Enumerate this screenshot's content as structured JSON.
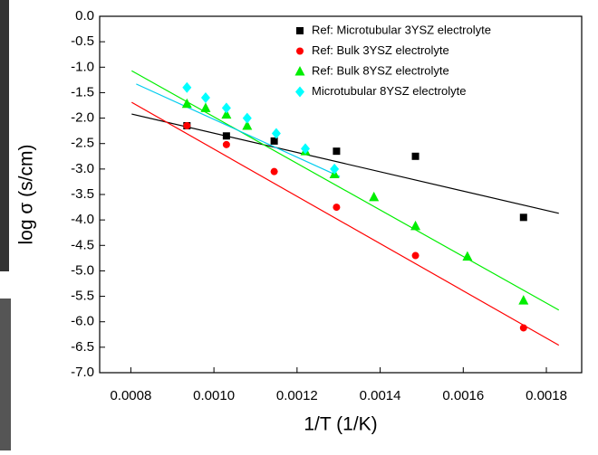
{
  "chart_data": {
    "type": "scatter",
    "x_label": "1/T (1/K)",
    "y_label": "log σ (s/cm)",
    "xlim": [
      0.000725,
      0.001885
    ],
    "ylim": [
      -7,
      0
    ],
    "xticks": [
      0.0008,
      {
        "value": 0.001,
        "label": "0.0010"
      },
      0.0012,
      0.0014,
      0.0016,
      0.0018
    ],
    "yticks": [
      {
        "value": 0,
        "label": "0.0"
      },
      -0.5,
      {
        "value": -1,
        "label": "-1.0"
      },
      -1.5,
      {
        "value": -2,
        "label": "-2.0"
      },
      -2.5,
      {
        "value": -3,
        "label": "-3.0"
      },
      -3.5,
      {
        "value": -4,
        "label": "-4.0"
      },
      -4.5,
      {
        "value": -5,
        "label": "-5.0"
      },
      -5.5,
      {
        "value": -6,
        "label": "-6.0"
      },
      -6.5,
      {
        "value": -7,
        "label": "-7.0"
      }
    ],
    "legend": "upper right",
    "series": [
      {
        "name": "Ref: Microtubular 3YSZ electrolyte",
        "color": "#000000",
        "marker": "square",
        "x": [
          0.000935,
          0.00103,
          0.001145,
          0.001295,
          0.001485,
          0.001745
        ],
        "values": [
          -2.15,
          -2.35,
          -2.45,
          -2.65,
          -2.75,
          -3.95
        ],
        "trendline": {
          "x": [
            0.000802,
            0.00183
          ],
          "y": [
            -1.92,
            -3.87
          ]
        }
      },
      {
        "name": "Ref: Bulk 3YSZ electrolyte",
        "color": "#ff0000",
        "marker": "circle",
        "x": [
          0.000935,
          0.00103,
          0.001145,
          0.001295,
          0.001485,
          0.001745
        ],
        "values": [
          -2.15,
          -2.52,
          -3.05,
          -3.75,
          -4.7,
          -6.12
        ],
        "trendline": {
          "x": [
            0.000802,
            0.00183
          ],
          "y": [
            -1.69,
            -6.46
          ]
        }
      },
      {
        "name": "Ref: Bulk 8YSZ electrolyte",
        "color": "#00ee00",
        "marker": "triangle",
        "x": [
          0.000935,
          0.00098,
          0.00103,
          0.00108,
          0.00122,
          0.00129,
          0.001385,
          0.001485,
          0.00161,
          0.001745
        ],
        "values": [
          -1.72,
          -1.8,
          -1.93,
          -2.15,
          -2.65,
          -3.1,
          -3.55,
          -4.12,
          -4.72,
          -5.58
        ],
        "trendline": {
          "x": [
            0.000802,
            0.00183
          ],
          "y": [
            -1.07,
            -5.77
          ]
        }
      },
      {
        "name": "Microtubular 8YSZ electrolyte",
        "color": "#00ffff",
        "marker": "diamond",
        "x": [
          0.000935,
          0.00098,
          0.00103,
          0.00108,
          0.00115,
          0.00122,
          0.00129
        ],
        "values": [
          -1.4,
          -1.6,
          -1.8,
          -2.0,
          -2.3,
          -2.6,
          -3.0
        ],
        "trendline": {
          "x": [
            0.000813,
            0.001303
          ],
          "y": [
            -1.33,
            -3.15
          ]
        }
      }
    ]
  }
}
